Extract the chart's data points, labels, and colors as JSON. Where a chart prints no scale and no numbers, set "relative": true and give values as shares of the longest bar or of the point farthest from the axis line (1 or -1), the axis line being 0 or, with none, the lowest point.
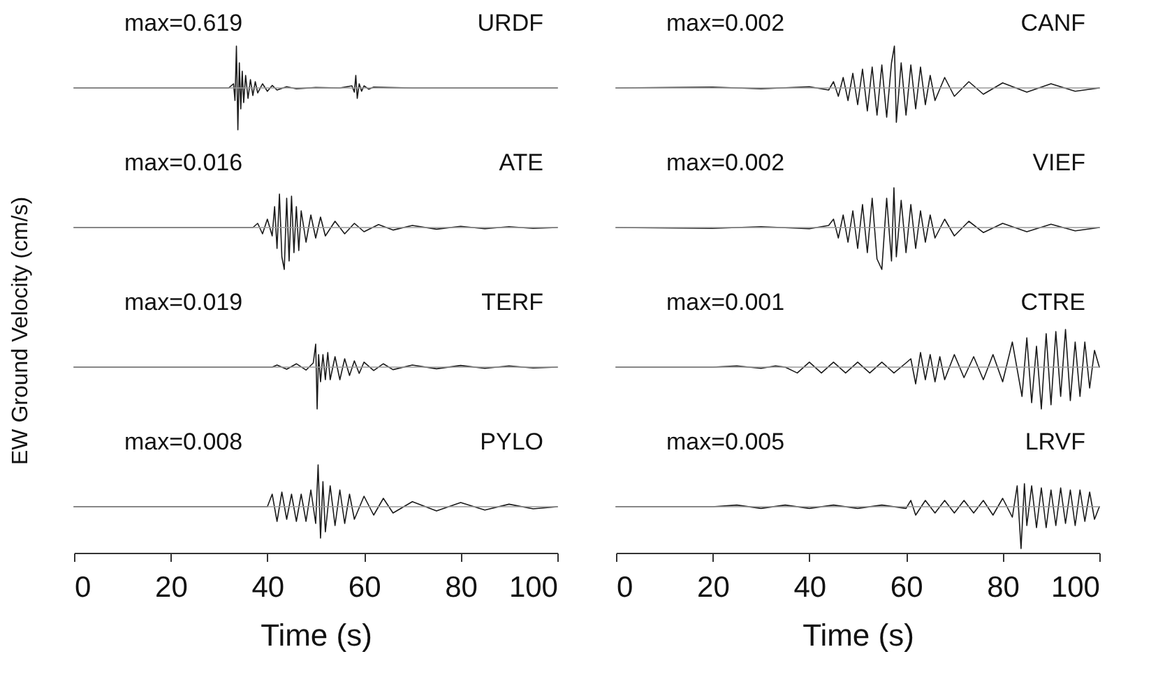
{
  "chart_data": [
    {
      "type": "line",
      "relative": true,
      "xlim": [
        0,
        100
      ],
      "tick_labels": false,
      "ylabel": "EW Ground Velocity (cm/s)",
      "annotations": [
        "max=0.619",
        "URDF"
      ],
      "x": [
        0,
        32,
        33,
        33.3,
        33.6,
        33.9,
        34.2,
        34.5,
        34.8,
        35.1,
        35.5,
        36,
        36.5,
        37,
        37.5,
        38,
        39,
        40,
        41,
        42,
        44,
        46,
        50,
        55,
        57.5,
        58,
        58.3,
        58.6,
        59,
        59.5,
        60,
        61,
        62,
        65,
        70,
        80,
        90,
        100
      ],
      "series": [
        {
          "color": "#1a1a1a",
          "values": [
            0,
            0,
            0.1,
            -0.3,
            1.0,
            -1.0,
            0.6,
            -0.5,
            0.4,
            -0.35,
            0.3,
            -0.25,
            0.2,
            -0.18,
            0.15,
            -0.12,
            0.1,
            -0.08,
            0.06,
            -0.05,
            0.03,
            -0.02,
            0.01,
            0,
            0.05,
            -0.1,
            0.3,
            -0.25,
            0.1,
            -0.08,
            0.05,
            -0.03,
            0.02,
            0.01,
            0,
            0,
            0,
            0
          ]
        }
      ]
    },
    {
      "type": "line",
      "relative": true,
      "xlim": [
        0,
        100
      ],
      "tick_labels": false,
      "annotations": [
        "max=0.002",
        "CANF"
      ],
      "x": [
        0,
        20,
        30,
        40,
        44,
        45,
        46,
        47,
        48,
        49,
        50,
        51,
        52,
        53,
        54,
        55,
        56,
        57,
        57.6,
        58,
        59,
        60,
        61,
        62,
        63,
        64,
        65,
        66,
        68,
        70,
        73,
        76,
        80,
        85,
        90,
        95,
        100
      ],
      "series": [
        {
          "color": "#1a1a1a",
          "values": [
            0,
            0.02,
            -0.02,
            0.03,
            -0.05,
            0.15,
            -0.2,
            0.25,
            -0.3,
            0.35,
            -0.4,
            0.45,
            -0.55,
            0.5,
            -0.65,
            0.55,
            -0.7,
            0.6,
            1.0,
            -0.82,
            0.6,
            -0.65,
            0.55,
            -0.5,
            0.5,
            -0.4,
            0.3,
            -0.3,
            0.25,
            -0.2,
            0.15,
            -0.15,
            0.12,
            -0.1,
            0.1,
            -0.08,
            0
          ]
        }
      ]
    },
    {
      "type": "line",
      "relative": true,
      "xlim": [
        0,
        100
      ],
      "tick_labels": false,
      "annotations": [
        "max=0.016",
        "ATE"
      ],
      "x": [
        0,
        37,
        38,
        39,
        40,
        41,
        41.5,
        42,
        42.5,
        43,
        43.5,
        44,
        44.5,
        45,
        45.5,
        46,
        46.5,
        47,
        48,
        49,
        50,
        51,
        52,
        54,
        56,
        58,
        60,
        63,
        66,
        70,
        75,
        80,
        85,
        90,
        95,
        100
      ],
      "series": [
        {
          "color": "#1a1a1a",
          "values": [
            0,
            0,
            0.1,
            -0.15,
            0.2,
            -0.2,
            0.5,
            -0.5,
            0.8,
            -0.7,
            -1.0,
            0.7,
            -0.8,
            0.75,
            -0.6,
            0.5,
            -0.55,
            0.4,
            -0.35,
            0.3,
            -0.25,
            0.25,
            -0.2,
            0.15,
            -0.15,
            0.1,
            -0.1,
            0.07,
            -0.06,
            0.05,
            -0.04,
            0.03,
            -0.03,
            0.02,
            -0.02,
            0
          ]
        }
      ]
    },
    {
      "type": "line",
      "relative": true,
      "xlim": [
        0,
        100
      ],
      "tick_labels": false,
      "annotations": [
        "max=0.002",
        "VIEF"
      ],
      "x": [
        0,
        20,
        30,
        40,
        44,
        45,
        46,
        47,
        48,
        49,
        50,
        51,
        52,
        53,
        54,
        55,
        56,
        57,
        57.5,
        58,
        59,
        60,
        61,
        62,
        63,
        64,
        65,
        66,
        68,
        70,
        73,
        76,
        80,
        85,
        90,
        95,
        100
      ],
      "series": [
        {
          "color": "#1a1a1a",
          "values": [
            0,
            -0.02,
            0.02,
            -0.03,
            0.05,
            0.2,
            -0.25,
            0.3,
            -0.35,
            0.4,
            -0.5,
            0.55,
            -0.6,
            0.7,
            -0.75,
            -1.0,
            0.7,
            -0.8,
            0.95,
            -0.7,
            0.65,
            -0.6,
            0.55,
            -0.5,
            0.4,
            -0.35,
            0.3,
            -0.25,
            0.2,
            -0.2,
            0.15,
            -0.12,
            0.1,
            -0.1,
            0.08,
            -0.08,
            0
          ]
        }
      ]
    },
    {
      "type": "line",
      "relative": true,
      "xlim": [
        0,
        100
      ],
      "tick_labels": false,
      "annotations": [
        "max=0.019",
        "TERF"
      ],
      "x": [
        0,
        41,
        42,
        44,
        46,
        48,
        49.5,
        50,
        50.3,
        50.6,
        51,
        51.5,
        52,
        52.5,
        53,
        54,
        55,
        56,
        57,
        58,
        59,
        60,
        62,
        64,
        66,
        70,
        75,
        80,
        85,
        90,
        95,
        100
      ],
      "series": [
        {
          "color": "#1a1a1a",
          "values": [
            0,
            0,
            0.05,
            -0.05,
            0.08,
            -0.07,
            0.1,
            0.55,
            -1.0,
            0.3,
            -0.35,
            0.3,
            -0.3,
            0.35,
            -0.3,
            0.25,
            -0.3,
            0.2,
            -0.2,
            0.15,
            -0.15,
            0.12,
            -0.08,
            0.08,
            -0.06,
            0.05,
            -0.04,
            0.04,
            -0.03,
            0.03,
            -0.02,
            0
          ]
        }
      ]
    },
    {
      "type": "line",
      "relative": true,
      "xlim": [
        0,
        100
      ],
      "tick_labels": false,
      "annotations": [
        "max=0.001",
        "CTRE"
      ],
      "x": [
        0,
        20,
        25,
        30,
        33,
        35,
        37.5,
        40,
        42.5,
        45,
        47.5,
        50,
        52.5,
        55,
        57.5,
        60,
        61,
        62,
        63,
        64,
        65,
        66,
        67,
        68,
        70,
        72,
        74,
        76,
        78,
        80,
        82,
        84,
        85,
        86,
        87,
        88,
        89,
        90,
        91,
        92,
        93,
        94,
        95,
        96,
        97,
        98,
        99,
        100
      ],
      "series": [
        {
          "color": "#1a1a1a",
          "values": [
            0,
            0,
            0.03,
            -0.03,
            0.03,
            0,
            -0.14,
            0.12,
            -0.14,
            0.12,
            -0.14,
            0.12,
            -0.14,
            0.12,
            -0.14,
            0.1,
            0.2,
            -0.4,
            0.35,
            -0.3,
            0.3,
            -0.35,
            0.25,
            -0.3,
            0.3,
            -0.25,
            0.25,
            -0.3,
            0.3,
            -0.35,
            0.6,
            -0.7,
            0.7,
            -0.85,
            0.5,
            -1.0,
            0.8,
            -0.9,
            0.85,
            -0.7,
            0.9,
            -0.8,
            0.6,
            -0.7,
            0.6,
            -0.5,
            0.4,
            0
          ]
        }
      ]
    },
    {
      "type": "line",
      "relative": true,
      "xlim": [
        0,
        100
      ],
      "xticks": [
        0,
        20,
        40,
        60,
        80,
        100
      ],
      "tick_labels": "x",
      "xlabel": "Time (s)",
      "annotations": [
        "max=0.008",
        "PYLO"
      ],
      "x": [
        0,
        40,
        41,
        42,
        43,
        44,
        45,
        46,
        47,
        48,
        49,
        50,
        50.5,
        51,
        51.5,
        52,
        53,
        54,
        55,
        56,
        57,
        58,
        60,
        62,
        64,
        66,
        70,
        75,
        80,
        85,
        90,
        95,
        100
      ],
      "series": [
        {
          "color": "#1a1a1a",
          "values": [
            0,
            0,
            0.3,
            -0.35,
            0.35,
            -0.3,
            0.3,
            -0.35,
            0.3,
            -0.35,
            0.4,
            -0.4,
            1.0,
            -0.75,
            0.6,
            -0.6,
            0.5,
            -0.45,
            0.4,
            -0.4,
            0.3,
            -0.3,
            0.25,
            -0.2,
            0.2,
            -0.15,
            0.12,
            -0.1,
            0.1,
            -0.08,
            0.06,
            -0.05,
            0
          ]
        }
      ]
    },
    {
      "type": "line",
      "relative": true,
      "xlim": [
        0,
        100
      ],
      "xticks": [
        0,
        20,
        40,
        60,
        80,
        100
      ],
      "tick_labels": "x",
      "xlabel": "Time (s)",
      "annotations": [
        "max=0.005",
        "LRVF"
      ],
      "x": [
        0,
        20,
        25,
        30,
        35,
        40,
        45,
        50,
        55,
        60,
        61,
        62,
        64,
        66,
        68,
        70,
        72,
        74,
        76,
        78,
        80,
        82,
        83,
        83.8,
        84.5,
        85,
        86,
        87,
        88,
        89,
        90,
        91,
        92,
        93,
        94,
        95,
        96,
        97,
        98,
        99,
        100
      ],
      "series": [
        {
          "color": "#1a1a1a",
          "values": [
            0,
            0,
            0.04,
            -0.04,
            0.04,
            -0.04,
            0.04,
            -0.04,
            0.04,
            -0.04,
            0.15,
            -0.2,
            0.15,
            -0.15,
            0.15,
            -0.15,
            0.15,
            -0.15,
            0.15,
            -0.2,
            0.2,
            -0.25,
            0.5,
            -1.0,
            0.55,
            -0.45,
            0.5,
            -0.5,
            0.45,
            -0.5,
            0.4,
            -0.45,
            0.45,
            -0.4,
            0.4,
            -0.45,
            0.4,
            -0.35,
            0.35,
            -0.3,
            0
          ]
        }
      ]
    }
  ]
}
